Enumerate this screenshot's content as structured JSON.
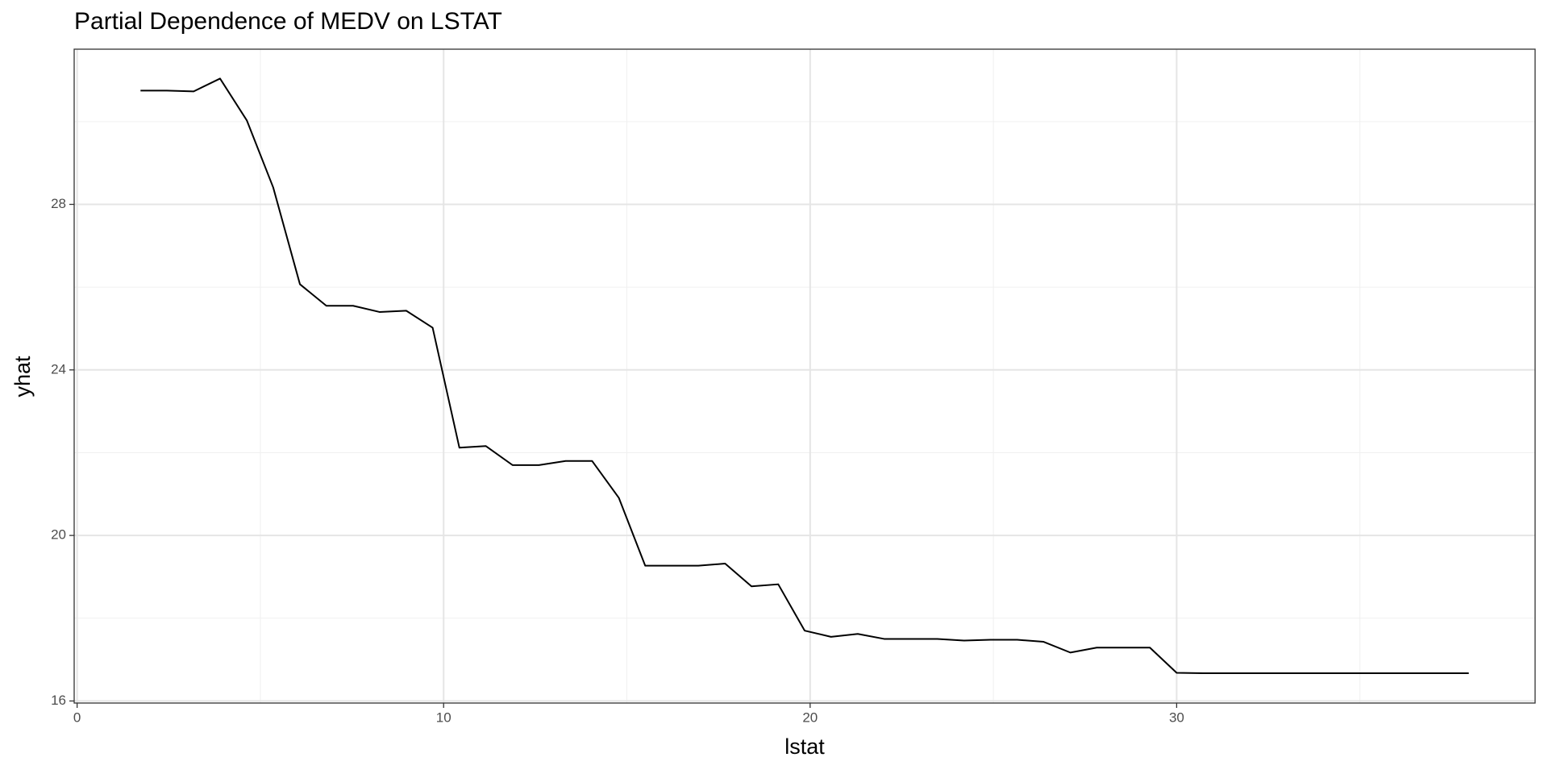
{
  "chart_data": {
    "type": "line",
    "title": "Partial Dependence of MEDV on LSTAT",
    "x_label": "lstat",
    "y_label": "yhat",
    "x": [
      1.73,
      2.45,
      3.18,
      3.9,
      4.63,
      5.35,
      6.08,
      6.8,
      7.53,
      8.25,
      8.98,
      9.7,
      10.43,
      11.15,
      11.88,
      12.6,
      13.33,
      14.05,
      14.78,
      15.5,
      16.23,
      16.95,
      17.68,
      18.4,
      19.13,
      19.85,
      20.57,
      21.3,
      22.02,
      22.75,
      23.47,
      24.2,
      24.92,
      25.65,
      26.37,
      27.1,
      27.82,
      28.55,
      29.27,
      30.0,
      30.72,
      31.45,
      32.17,
      32.9,
      33.62,
      34.35,
      35.07,
      35.8,
      36.52,
      37.25,
      37.97
    ],
    "series": [
      {
        "color": "#000000",
        "values": [
          30.75,
          30.75,
          30.73,
          31.04,
          30.03,
          28.41,
          26.07,
          25.55,
          25.55,
          25.4,
          25.43,
          25.02,
          22.12,
          22.16,
          21.7,
          21.7,
          21.8,
          21.8,
          20.91,
          19.27,
          19.27,
          19.27,
          19.32,
          18.77,
          18.82,
          17.7,
          17.55,
          17.62,
          17.5,
          17.5,
          17.5,
          17.46,
          17.48,
          17.48,
          17.43,
          17.17,
          17.29,
          17.29,
          17.29,
          16.68,
          16.67,
          16.67,
          16.67,
          16.67,
          16.67,
          16.67,
          16.67,
          16.67,
          16.67,
          16.67,
          16.67
        ]
      }
    ],
    "xlim": [
      -0.08,
      39.78
    ],
    "ylim": [
      15.95,
      31.75
    ],
    "xticks": [
      0,
      10,
      20,
      30
    ],
    "yticks": [
      16,
      20,
      24,
      28
    ],
    "x_minor_grid": [
      5,
      15,
      25,
      35
    ],
    "y_minor_grid": [
      18,
      22,
      26,
      30
    ],
    "grid": true
  }
}
